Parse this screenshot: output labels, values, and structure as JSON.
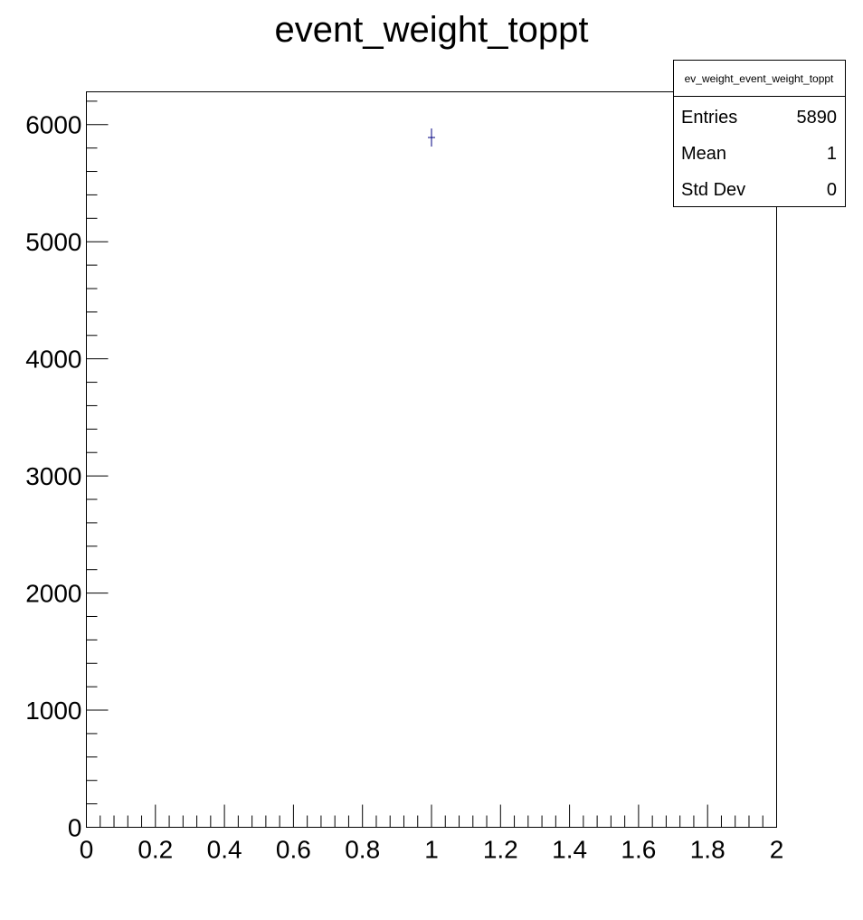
{
  "chart_data": {
    "type": "bar",
    "title": "event_weight_toppt",
    "xlabel": "",
    "ylabel": "",
    "xlim": [
      0,
      2
    ],
    "ylim": [
      0,
      6280
    ],
    "x_ticks": [
      "0",
      "0.2",
      "0.4",
      "0.6",
      "0.8",
      "1",
      "1.2",
      "1.4",
      "1.6",
      "1.8",
      "2"
    ],
    "y_ticks": [
      "0",
      "1000",
      "2000",
      "3000",
      "4000",
      "5000",
      "6000"
    ],
    "points": [
      {
        "x": 1,
        "y": 5890,
        "yerr": 77
      }
    ],
    "marker_color": "#000080",
    "stats_box": {
      "name": "ev_weight_event_weight_toppt",
      "rows": [
        {
          "label": "Entries",
          "value": "5890"
        },
        {
          "label": "Mean",
          "value": "1"
        },
        {
          "label": "Std Dev",
          "value": "0"
        }
      ]
    }
  }
}
